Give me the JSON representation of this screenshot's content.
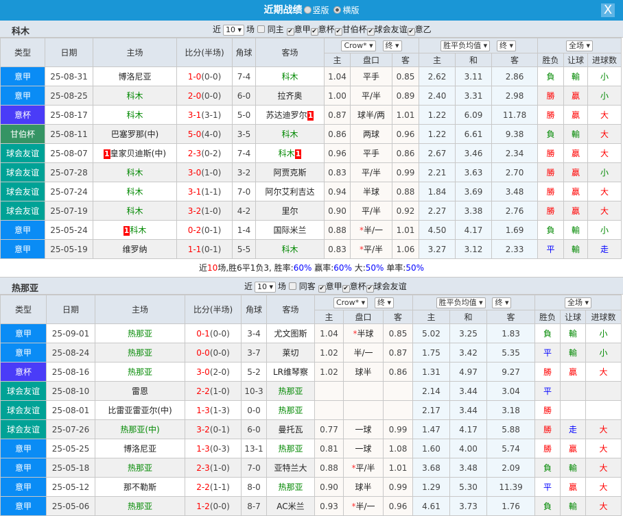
{
  "title": {
    "text": "近期战绩",
    "opt1": "竖版",
    "opt2": "横版",
    "selected": "横版",
    "close": "X"
  },
  "colors": {
    "意甲": "#0a8cf5",
    "意杯": "#4a3cf8",
    "甘伯杯": "#359464",
    "球会友谊": "#00a296"
  },
  "headers": {
    "type": "类型",
    "date": "日期",
    "home": "主场",
    "score": "比分(半场)",
    "corner": "角球",
    "away": "客场",
    "company": "Crow*",
    "final1": "终",
    "avg": "胜平负均值",
    "final2": "终",
    "scope": "全场",
    "h": "主",
    "line": "盘口",
    "a": "客",
    "oh": "主",
    "od": "和",
    "oa": "客",
    "wl": "胜负",
    "hc": "让球",
    "goals": "进球数"
  },
  "sections": [
    {
      "team": "科木",
      "near": "近",
      "count": "10",
      "unit": "场",
      "same": "同主",
      "filters": [
        "意甲",
        "意杯",
        "甘伯杯",
        "球会友谊",
        "意乙"
      ],
      "rows": [
        {
          "type": "意甲",
          "date": "25-08-31",
          "home": "博洛尼亚",
          "hg": false,
          "score": "1-0",
          "half": "(0-0)",
          "corner": "7-4",
          "away": "科木",
          "ag": true,
          "h": "1.04",
          "line": "平手",
          "a": "0.85",
          "oh": "2.62",
          "od": "3.11",
          "oa": "2.86",
          "wl": "負",
          "hc": "輸",
          "goals": "小"
        },
        {
          "type": "意甲",
          "date": "25-08-25",
          "home": "科木",
          "hg": true,
          "score": "2-0",
          "half": "(0-0)",
          "corner": "6-0",
          "away": "拉齐奥",
          "ag": false,
          "h": "1.00",
          "line": "平/半",
          "a": "0.89",
          "oh": "2.40",
          "od": "3.31",
          "oa": "2.98",
          "wl": "勝",
          "hc": "贏",
          "goals": "小"
        },
        {
          "type": "意杯",
          "date": "25-08-17",
          "home": "科木",
          "hg": true,
          "score": "3-1",
          "half": "(3-1)",
          "corner": "5-0",
          "away": "苏达迪罗尔",
          "ag": false,
          "acard": "1",
          "h": "0.87",
          "line": "球半/两",
          "a": "1.01",
          "oh": "1.22",
          "od": "6.09",
          "oa": "11.78",
          "wl": "勝",
          "hc": "贏",
          "goals": "大"
        },
        {
          "type": "甘伯杯",
          "date": "25-08-11",
          "home": "巴塞罗那(中)",
          "hg": false,
          "score": "5-0",
          "half": "(4-0)",
          "corner": "3-5",
          "away": "科木",
          "ag": true,
          "h": "0.86",
          "line": "两球",
          "a": "0.96",
          "oh": "1.22",
          "od": "6.61",
          "oa": "9.38",
          "wl": "負",
          "hc": "輸",
          "goals": "大"
        },
        {
          "type": "球会友谊",
          "date": "25-08-07",
          "home": "皇家贝迪斯(中)",
          "hg": false,
          "hcard": "1",
          "score": "2-3",
          "half": "(0-2)",
          "corner": "7-4",
          "away": "科木",
          "ag": true,
          "acard": "1",
          "h": "0.96",
          "line": "平手",
          "a": "0.86",
          "oh": "2.67",
          "od": "3.46",
          "oa": "2.34",
          "wl": "勝",
          "hc": "贏",
          "goals": "大"
        },
        {
          "type": "球会友谊",
          "date": "25-07-28",
          "home": "科木",
          "hg": true,
          "score": "3-0",
          "half": "(1-0)",
          "corner": "3-2",
          "away": "阿贾克斯",
          "ag": false,
          "h": "0.83",
          "line": "平/半",
          "a": "0.99",
          "oh": "2.21",
          "od": "3.63",
          "oa": "2.70",
          "wl": "勝",
          "hc": "贏",
          "goals": "小"
        },
        {
          "type": "球会友谊",
          "date": "25-07-24",
          "home": "科木",
          "hg": true,
          "score": "3-1",
          "half": "(1-1)",
          "corner": "7-0",
          "away": "阿尔艾利吉达",
          "ag": false,
          "h": "0.94",
          "line": "半球",
          "a": "0.88",
          "oh": "1.84",
          "od": "3.69",
          "oa": "3.48",
          "wl": "勝",
          "hc": "贏",
          "goals": "大"
        },
        {
          "type": "球会友谊",
          "date": "25-07-19",
          "home": "科木",
          "hg": true,
          "score": "3-2",
          "half": "(1-0)",
          "corner": "4-2",
          "away": "里尔",
          "ag": false,
          "h": "0.90",
          "line": "平/半",
          "a": "0.92",
          "oh": "2.27",
          "od": "3.38",
          "oa": "2.76",
          "wl": "勝",
          "hc": "贏",
          "goals": "大"
        },
        {
          "type": "意甲",
          "date": "25-05-24",
          "home": "科木",
          "hg": true,
          "hcard": "1",
          "score": "0-2",
          "half": "(0-1)",
          "corner": "1-4",
          "away": "国际米兰",
          "ag": false,
          "h": "0.88",
          "line": "*半/一",
          "a": "1.01",
          "oh": "4.50",
          "od": "4.17",
          "oa": "1.69",
          "wl": "負",
          "hc": "輸",
          "goals": "小"
        },
        {
          "type": "意甲",
          "date": "25-05-19",
          "home": "维罗纳",
          "hg": false,
          "score": "1-1",
          "half": "(0-1)",
          "corner": "5-5",
          "away": "科木",
          "ag": true,
          "h": "0.83",
          "line": "*平/半",
          "a": "1.06",
          "oh": "3.27",
          "od": "3.12",
          "oa": "2.33",
          "wl": "平",
          "hc": "輸",
          "goals": "走"
        }
      ],
      "summary": {
        "p1": "近",
        "n": "10",
        "p2": "场,胜6平1负3, 胜率:",
        "win": "60%",
        "p3": " 赢率:",
        "cover": "60%",
        "p4": " 大:",
        "over": "50%",
        "p5": " 单率:",
        "odd": "50%"
      }
    },
    {
      "team": "热那亚",
      "near": "近",
      "count": "10",
      "unit": "场",
      "same": "同客",
      "filters": [
        "意甲",
        "意杯",
        "球会友谊"
      ],
      "rows": [
        {
          "type": "意甲",
          "date": "25-09-01",
          "home": "热那亚",
          "hg": true,
          "score": "0-1",
          "half": "(0-0)",
          "corner": "3-4",
          "away": "尤文图斯",
          "ag": false,
          "h": "1.04",
          "line": "*半球",
          "a": "0.85",
          "oh": "5.02",
          "od": "3.25",
          "oa": "1.83",
          "wl": "負",
          "hc": "輸",
          "goals": "小"
        },
        {
          "type": "意甲",
          "date": "25-08-24",
          "home": "热那亚",
          "hg": true,
          "score": "0-0",
          "half": "(0-0)",
          "corner": "3-7",
          "away": "莱切",
          "ag": false,
          "h": "1.02",
          "line": "半/一",
          "a": "0.87",
          "oh": "1.75",
          "od": "3.42",
          "oa": "5.35",
          "wl": "平",
          "hc": "輸",
          "goals": "小"
        },
        {
          "type": "意杯",
          "date": "25-08-16",
          "home": "热那亚",
          "hg": true,
          "score": "3-0",
          "half": "(2-0)",
          "corner": "5-2",
          "away": "LR维琴察",
          "ag": false,
          "h": "1.02",
          "line": "球半",
          "a": "0.86",
          "oh": "1.31",
          "od": "4.97",
          "oa": "9.27",
          "wl": "勝",
          "hc": "贏",
          "goals": "大"
        },
        {
          "type": "球会友谊",
          "date": "25-08-10",
          "home": "雷恩",
          "hg": false,
          "score": "2-2",
          "half": "(1-0)",
          "corner": "10-3",
          "away": "热那亚",
          "ag": true,
          "h": "",
          "line": "",
          "a": "",
          "oh": "2.14",
          "od": "3.44",
          "oa": "3.04",
          "wl": "平",
          "hc": "",
          "goals": ""
        },
        {
          "type": "球会友谊",
          "date": "25-08-01",
          "home": "比雷亚雷亚尔(中)",
          "hg": false,
          "score": "1-3",
          "half": "(1-3)",
          "corner": "0-0",
          "away": "热那亚",
          "ag": true,
          "h": "",
          "line": "",
          "a": "",
          "oh": "2.17",
          "od": "3.44",
          "oa": "3.18",
          "wl": "勝",
          "hc": "",
          "goals": ""
        },
        {
          "type": "球会友谊",
          "date": "25-07-26",
          "home": "热那亚(中)",
          "hg": true,
          "score": "3-2",
          "half": "(0-1)",
          "corner": "6-0",
          "away": "曼托瓦",
          "ag": false,
          "h": "0.77",
          "line": "一球",
          "a": "0.99",
          "oh": "1.47",
          "od": "4.17",
          "oa": "5.88",
          "wl": "勝",
          "hc": "走",
          "goals": "大"
        },
        {
          "type": "意甲",
          "date": "25-05-25",
          "home": "博洛尼亚",
          "hg": false,
          "score": "1-3",
          "half": "(0-3)",
          "corner": "13-1",
          "away": "热那亚",
          "ag": true,
          "h": "0.81",
          "line": "一球",
          "a": "1.08",
          "oh": "1.60",
          "od": "4.00",
          "oa": "5.74",
          "wl": "勝",
          "hc": "贏",
          "goals": "大"
        },
        {
          "type": "意甲",
          "date": "25-05-18",
          "home": "热那亚",
          "hg": true,
          "score": "2-3",
          "half": "(1-0)",
          "corner": "7-0",
          "away": "亚特兰大",
          "ag": false,
          "h": "0.88",
          "line": "*平/半",
          "a": "1.01",
          "oh": "3.68",
          "od": "3.48",
          "oa": "2.09",
          "wl": "負",
          "hc": "輸",
          "goals": "大"
        },
        {
          "type": "意甲",
          "date": "25-05-12",
          "home": "那不勒斯",
          "hg": false,
          "score": "2-2",
          "half": "(1-1)",
          "corner": "8-0",
          "away": "热那亚",
          "ag": true,
          "h": "0.90",
          "line": "球半",
          "a": "0.99",
          "oh": "1.29",
          "od": "5.30",
          "oa": "11.39",
          "wl": "平",
          "hc": "贏",
          "goals": "大"
        },
        {
          "type": "意甲",
          "date": "25-05-06",
          "home": "热那亚",
          "hg": true,
          "score": "1-2",
          "half": "(0-0)",
          "corner": "8-7",
          "away": "AC米兰",
          "ag": false,
          "h": "0.93",
          "line": "*半/一",
          "a": "0.96",
          "oh": "4.61",
          "od": "3.73",
          "oa": "1.76",
          "wl": "負",
          "hc": "輸",
          "goals": "大"
        }
      ]
    }
  ]
}
